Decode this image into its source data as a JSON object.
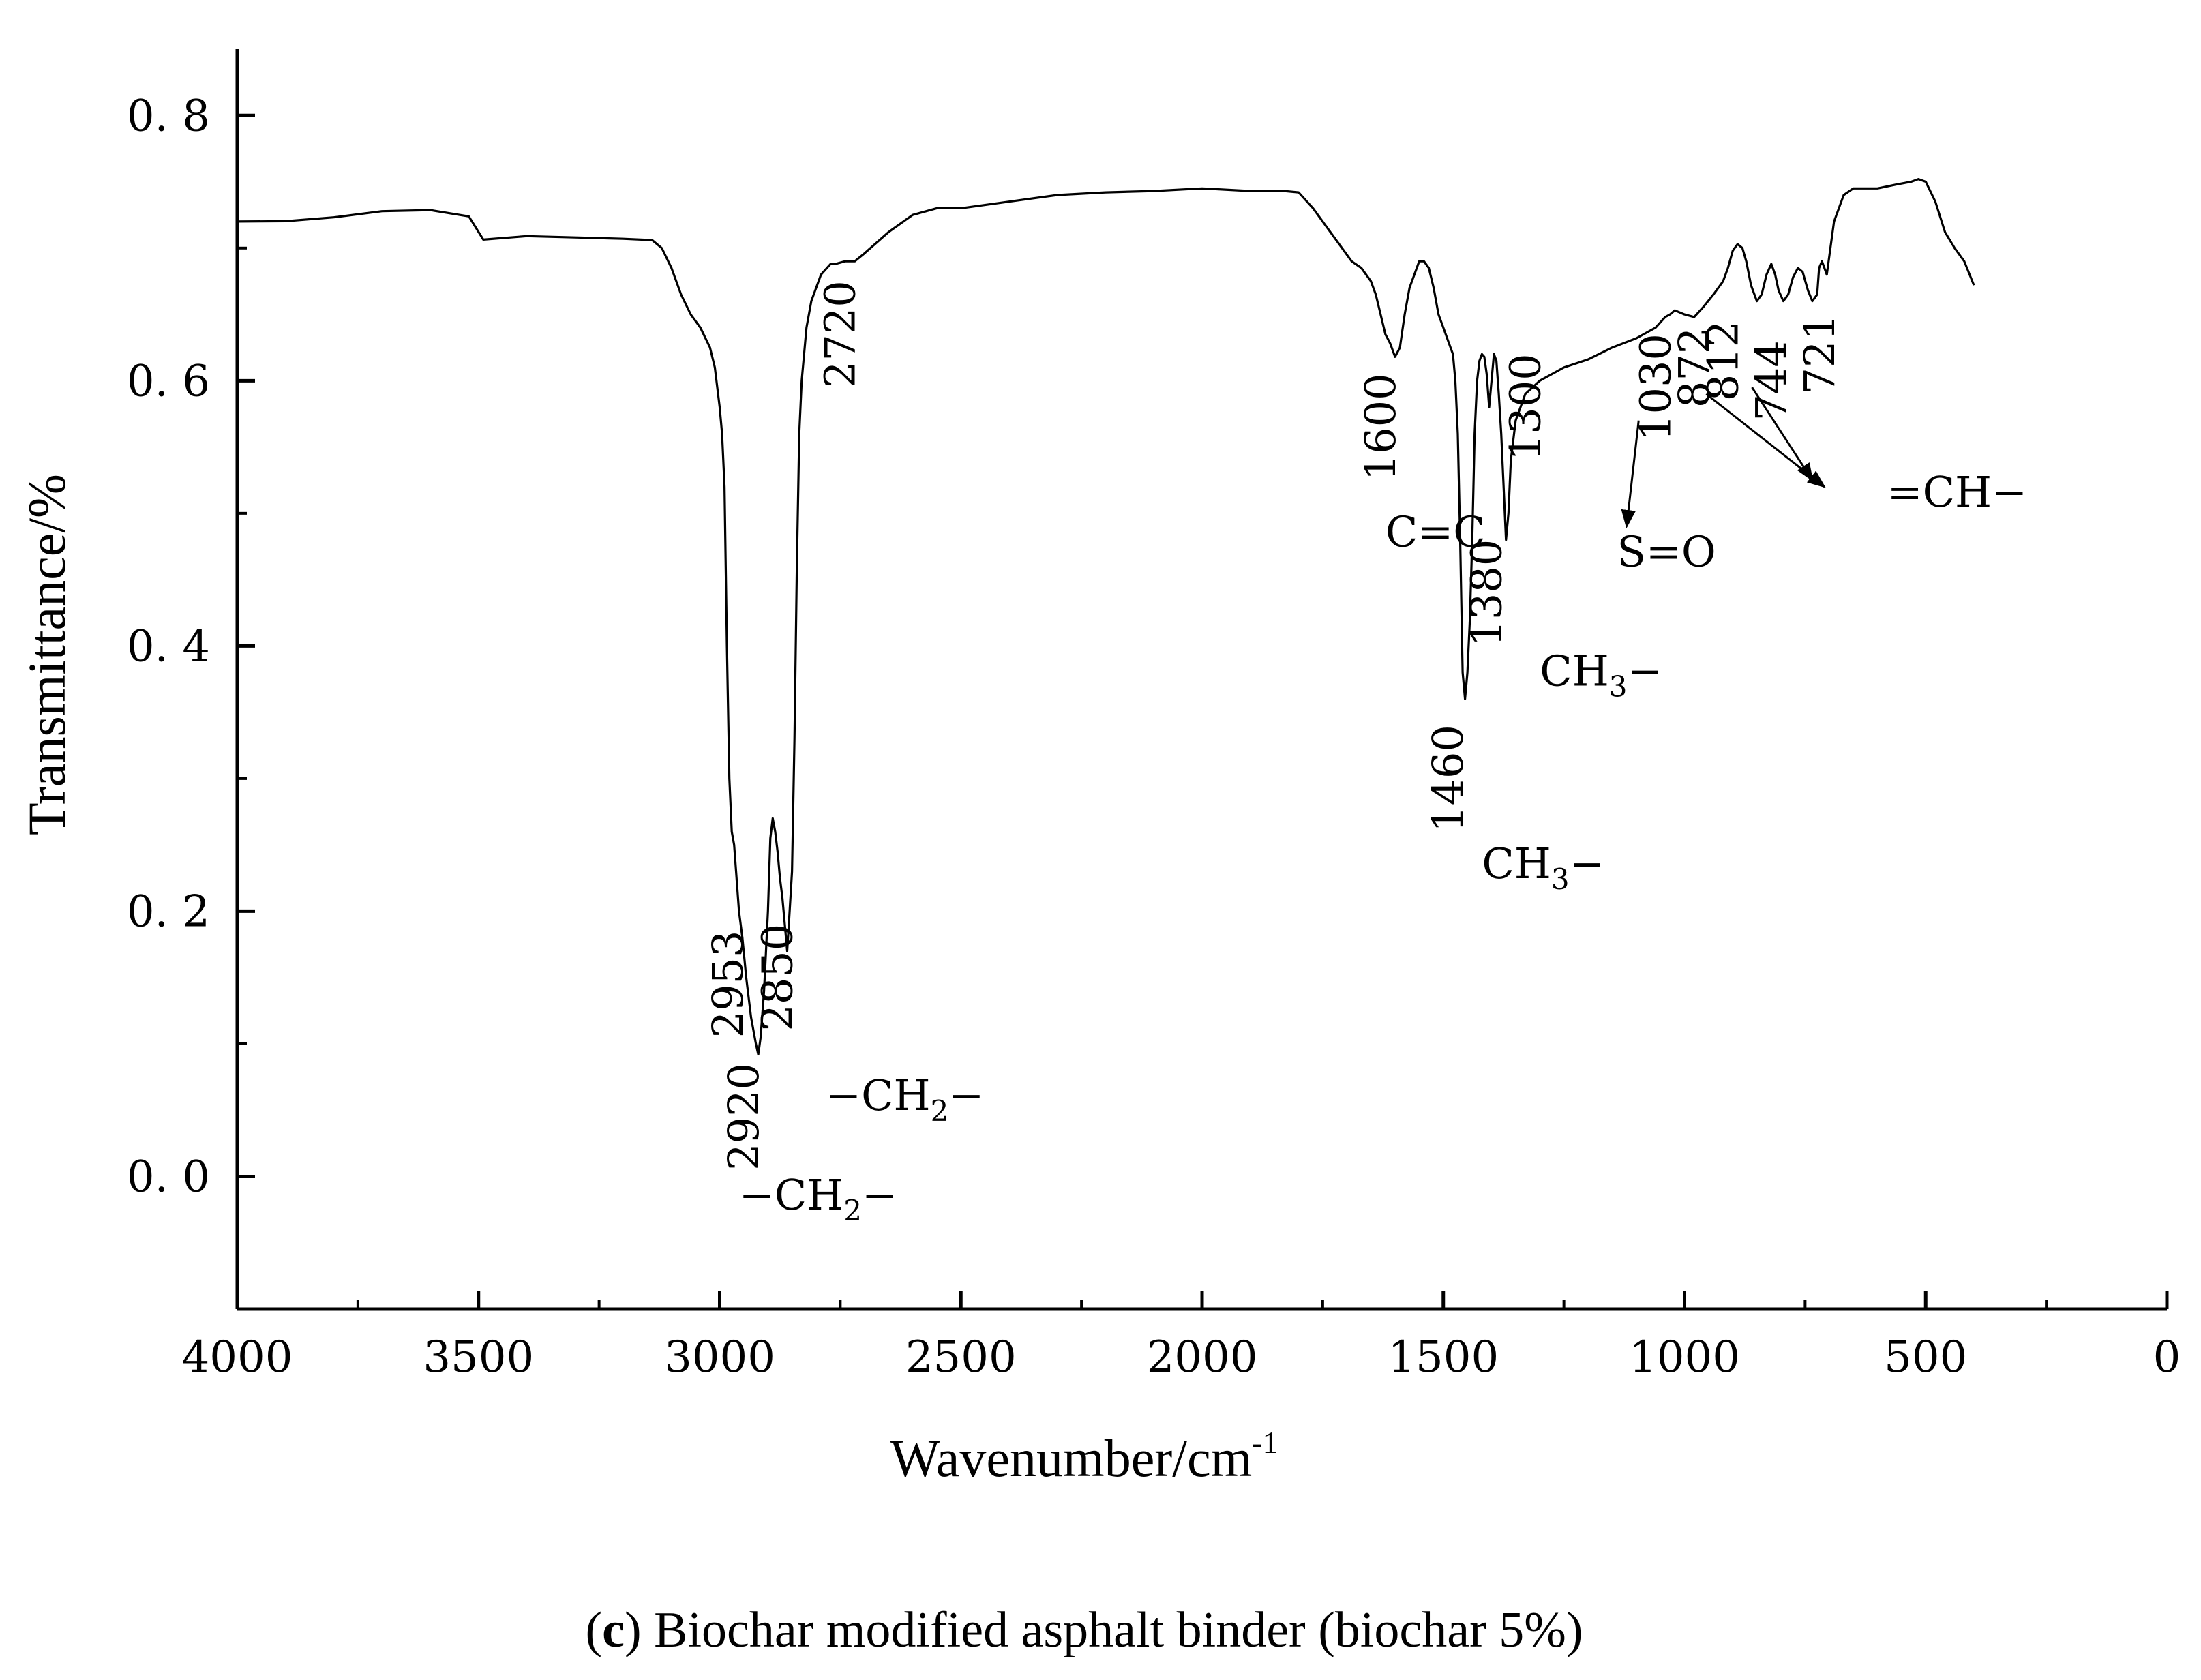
{
  "chart_data": {
    "type": "line",
    "title": "",
    "xlabel": "Wavenumber/cm",
    "xlabel_superscript": "-1",
    "ylabel": "Transmittance/%",
    "xlim": [
      4000,
      0
    ],
    "ylim": [
      -0.1,
      0.85
    ],
    "x_ticks": [
      "4000",
      "3500",
      "3000",
      "2500",
      "2000",
      "1500",
      "1000",
      "500",
      "0"
    ],
    "y_ticks": [
      "0. 0",
      "0. 2",
      "0. 4",
      "0. 6",
      "0. 8"
    ],
    "grid": false,
    "legend": "none",
    "line_color": "#000000",
    "series": [
      {
        "x": [
          4000,
          3900,
          3800,
          3700,
          3600,
          3520,
          3490,
          3400,
          3300,
          3200,
          3140,
          3120,
          3100,
          3080,
          3060,
          3040,
          3020,
          3010,
          3000,
          2995,
          2990,
          2985,
          2980,
          2975,
          2970,
          2960,
          2953,
          2945,
          2935,
          2925,
          2920,
          2915,
          2908,
          2900,
          2895,
          2890,
          2885,
          2880,
          2875,
          2870,
          2865,
          2860,
          2855,
          2850,
          2845,
          2840,
          2835,
          2830,
          2825,
          2820,
          2810,
          2790,
          2770,
          2760,
          2740,
          2720,
          2700,
          2650,
          2600,
          2550,
          2500,
          2400,
          2300,
          2200,
          2100,
          2000,
          1900,
          1830,
          1800,
          1770,
          1740,
          1710,
          1690,
          1670,
          1650,
          1640,
          1630,
          1620,
          1610,
          1600,
          1590,
          1580,
          1570,
          1560,
          1550,
          1540,
          1530,
          1520,
          1510,
          1500,
          1490,
          1480,
          1475,
          1470,
          1465,
          1460,
          1455,
          1450,
          1445,
          1440,
          1435,
          1430,
          1425,
          1420,
          1415,
          1410,
          1405,
          1400,
          1395,
          1390,
          1385,
          1380,
          1375,
          1370,
          1365,
          1360,
          1350,
          1330,
          1300,
          1250,
          1200,
          1150,
          1100,
          1060,
          1040,
          1030,
          1020,
          1000,
          980,
          960,
          940,
          920,
          910,
          900,
          890,
          880,
          872,
          862,
          850,
          840,
          830,
          820,
          812,
          805,
          795,
          785,
          775,
          765,
          755,
          744,
          735,
          725,
          721,
          715,
          705,
          690,
          670,
          650,
          600,
          560,
          530,
          515,
          500,
          480,
          460,
          440,
          420,
          400
        ],
        "y": [
          0.72,
          0.722,
          0.725,
          0.728,
          0.727,
          0.722,
          0.706,
          0.709,
          0.708,
          0.707,
          0.706,
          0.7,
          0.685,
          0.665,
          0.65,
          0.64,
          0.625,
          0.61,
          0.58,
          0.56,
          0.52,
          0.4,
          0.3,
          0.26,
          0.25,
          0.2,
          0.18,
          0.15,
          0.12,
          0.1,
          0.092,
          0.105,
          0.14,
          0.2,
          0.255,
          0.27,
          0.26,
          0.245,
          0.225,
          0.21,
          0.19,
          0.17,
          0.2,
          0.23,
          0.33,
          0.46,
          0.56,
          0.6,
          0.62,
          0.64,
          0.66,
          0.68,
          0.688,
          0.688,
          0.69,
          0.69,
          0.696,
          0.712,
          0.725,
          0.73,
          0.73,
          0.735,
          0.74,
          0.742,
          0.743,
          0.745,
          0.743,
          0.743,
          0.742,
          0.73,
          0.715,
          0.7,
          0.69,
          0.685,
          0.675,
          0.665,
          0.65,
          0.635,
          0.628,
          0.618,
          0.625,
          0.65,
          0.67,
          0.68,
          0.69,
          0.69,
          0.685,
          0.67,
          0.65,
          0.64,
          0.63,
          0.62,
          0.6,
          0.56,
          0.48,
          0.38,
          0.36,
          0.38,
          0.42,
          0.48,
          0.56,
          0.6,
          0.615,
          0.62,
          0.618,
          0.605,
          0.58,
          0.6,
          0.62,
          0.615,
          0.59,
          0.56,
          0.52,
          0.48,
          0.5,
          0.54,
          0.57,
          0.59,
          0.6,
          0.61,
          0.616,
          0.625,
          0.632,
          0.64,
          0.648,
          0.65,
          0.653,
          0.65,
          0.648,
          0.656,
          0.665,
          0.675,
          0.685,
          0.698,
          0.703,
          0.7,
          0.69,
          0.672,
          0.66,
          0.665,
          0.68,
          0.688,
          0.68,
          0.668,
          0.66,
          0.665,
          0.678,
          0.685,
          0.682,
          0.668,
          0.66,
          0.665,
          0.685,
          0.69,
          0.68,
          0.72,
          0.74,
          0.745,
          0.745,
          0.748,
          0.75,
          0.752,
          0.75,
          0.735,
          0.712,
          0.7,
          0.69,
          0.672
        ]
      }
    ],
    "peak_labels": [
      {
        "text": "2953",
        "x": 2953,
        "y": 0.145
      },
      {
        "text": "2920",
        "x": 2920,
        "y": 0.045
      },
      {
        "text": "2850",
        "x": 2850,
        "y": 0.15
      },
      {
        "text": "2720",
        "x": 2720,
        "y": 0.635
      },
      {
        "text": "1600",
        "x": 1600,
        "y": 0.565
      },
      {
        "text": "1460",
        "x": 1460,
        "y": 0.3
      },
      {
        "text": "1380",
        "x": 1380,
        "y": 0.44
      },
      {
        "text": "1300",
        "x": 1300,
        "y": 0.58
      },
      {
        "text": "1030",
        "x": 1030,
        "y": 0.595
      },
      {
        "text": "872",
        "x": 950,
        "y": 0.61
      },
      {
        "text": "812",
        "x": 890,
        "y": 0.615
      },
      {
        "text": "744",
        "x": 790,
        "y": 0.6
      },
      {
        "text": "721",
        "x": 690,
        "y": 0.62
      }
    ],
    "group_labels": [
      {
        "text": "−CH",
        "sub": "2",
        "tail": "−",
        "x": 2960,
        "y": -0.025
      },
      {
        "text": "−CH",
        "sub": "2",
        "tail": "−",
        "x": 2780,
        "y": 0.05
      },
      {
        "text": "C=C",
        "x": 1620,
        "y": 0.475
      },
      {
        "text": "CH",
        "sub": "3",
        "tail": "−",
        "x": 1420,
        "y": 0.225
      },
      {
        "text": "CH",
        "sub": "3",
        "tail": "−",
        "x": 1300,
        "y": 0.37
      },
      {
        "text": "S=O",
        "x": 1140,
        "y": 0.46
      },
      {
        "text": "=CH−",
        "x": 580,
        "y": 0.505
      }
    ],
    "arrows": [
      {
        "from": [
          1095,
          0.57
        ],
        "to": [
          1120,
          0.49
        ]
      },
      {
        "from": [
          955,
          0.59
        ],
        "to": [
          710,
          0.52
        ]
      },
      {
        "from": [
          860,
          0.595
        ],
        "to": [
          735,
          0.525
        ]
      }
    ]
  },
  "caption": {
    "open": "(",
    "letter": "c",
    "text": ") Biochar modified asphalt binder (biochar 5%)"
  }
}
